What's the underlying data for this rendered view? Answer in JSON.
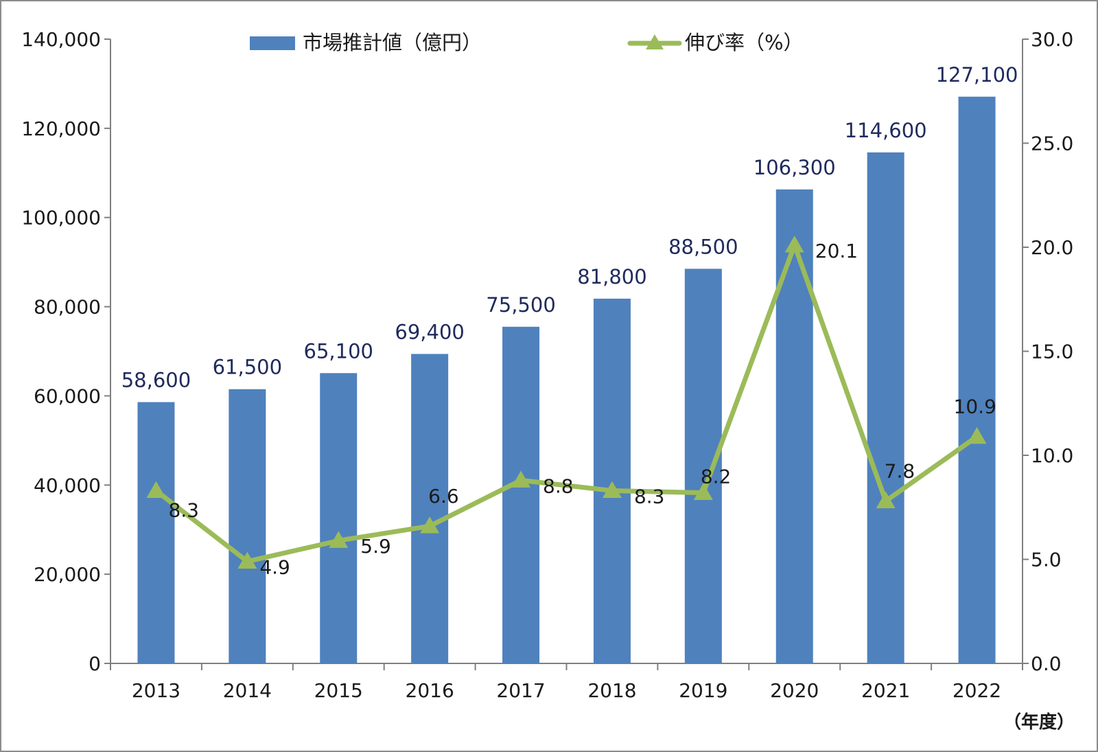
{
  "chart_data": {
    "type": "bar",
    "categories": [
      "2013",
      "2014",
      "2015",
      "2016",
      "2017",
      "2018",
      "2019",
      "2020",
      "2021",
      "2022"
    ],
    "series": [
      {
        "name": "市場推計値（億円）",
        "type": "bar",
        "axis": "left",
        "color": "#4f81bd",
        "values": [
          58600,
          61500,
          65100,
          69400,
          75500,
          81800,
          88500,
          106300,
          114600,
          127100
        ],
        "labels": [
          "58,600",
          "61,500",
          "65,100",
          "69,400",
          "75,500",
          "81,800",
          "88,500",
          "106,300",
          "114,600",
          "127,100"
        ]
      },
      {
        "name": "伸び率（%）",
        "type": "line",
        "axis": "right",
        "color": "#9bbb59",
        "marker": "triangle",
        "values": [
          8.3,
          4.9,
          5.9,
          6.6,
          8.8,
          8.3,
          8.2,
          20.1,
          7.8,
          10.9
        ],
        "labels": [
          "8.3",
          "4.9",
          "5.9",
          "6.6",
          "8.8",
          "8.3",
          "8.2",
          "20.1",
          "7.8",
          "10.9"
        ]
      }
    ],
    "y_left": {
      "range": [
        0,
        140000
      ],
      "ticks": [
        0,
        20000,
        40000,
        60000,
        80000,
        100000,
        120000,
        140000
      ],
      "tick_labels": [
        "0",
        "20,000",
        "40,000",
        "60,000",
        "80,000",
        "100,000",
        "120,000",
        "140,000"
      ]
    },
    "y_right": {
      "range": [
        0,
        30
      ],
      "ticks": [
        0,
        5,
        10,
        15,
        20,
        25,
        30
      ],
      "tick_labels": [
        "0.0",
        "5.0",
        "10.0",
        "15.0",
        "20.0",
        "25.0",
        "30.0"
      ]
    },
    "x_unit": "（年度）",
    "legend_position": "top",
    "grid": false,
    "axis_color": "#7f7f7f"
  }
}
